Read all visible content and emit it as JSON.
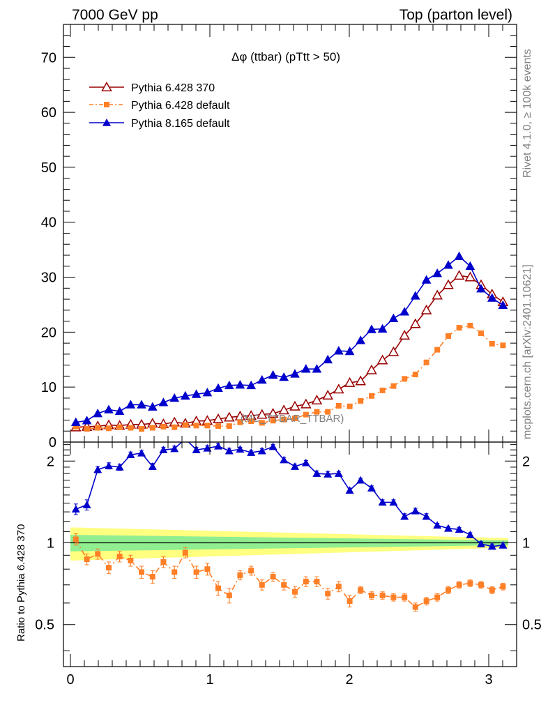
{
  "header": {
    "left": "7000 GeV pp",
    "right": "Top (parton level)"
  },
  "side": {
    "rivet": "Rivet 4.1.0, ≥ 100k events",
    "mcplots": "mcplots.cern.ch [arXiv:2401.10621]"
  },
  "watermark": "(MC_TTBAR_TTBAR)",
  "chart_data": [
    {
      "type": "line",
      "title": "Δφ (ttbar) (pTtt > 50)",
      "xlim": [
        -0.05,
        3.2
      ],
      "ylim": [
        0,
        76
      ],
      "yticks": [
        0,
        10,
        20,
        30,
        40,
        50,
        60,
        70
      ],
      "ytick_labels": [
        "0",
        "10",
        "20",
        "30",
        "40",
        "50",
        "60",
        "70"
      ],
      "legend": [
        "Pythia 6.428 370",
        "Pythia 6.428 default",
        "Pythia 8.165 default"
      ],
      "x": [
        0.039,
        0.118,
        0.196,
        0.275,
        0.353,
        0.432,
        0.51,
        0.589,
        0.667,
        0.746,
        0.824,
        0.903,
        0.982,
        1.06,
        1.139,
        1.217,
        1.296,
        1.374,
        1.453,
        1.531,
        1.61,
        1.689,
        1.767,
        1.846,
        1.924,
        2.003,
        2.081,
        2.16,
        2.238,
        2.317,
        2.396,
        2.474,
        2.553,
        2.631,
        2.71,
        2.788,
        2.867,
        2.945,
        3.024,
        3.102
      ],
      "series": [
        {
          "name": "Pythia 6.428 370",
          "color": "#990000",
          "marker": "open-triangle",
          "values": [
            2.7,
            2.8,
            2.9,
            3.1,
            3.0,
            3.2,
            3.2,
            3.4,
            3.3,
            3.6,
            3.4,
            3.8,
            3.9,
            4.2,
            4.5,
            4.7,
            4.8,
            5.0,
            5.2,
            5.8,
            6.5,
            6.9,
            7.6,
            8.5,
            9.6,
            10.8,
            11.1,
            13.1,
            14.9,
            16.4,
            19.4,
            21.5,
            24.0,
            26.7,
            28.6,
            30.3,
            30.0,
            28.6,
            26.9,
            25.5
          ],
          "errors": [
            0.25,
            0.25,
            0.25,
            0.25,
            0.25,
            0.25,
            0.25,
            0.25,
            0.25,
            0.25,
            0.25,
            0.25,
            0.25,
            0.25,
            0.25,
            0.25,
            0.25,
            0.25,
            0.25,
            0.25,
            0.25,
            0.25,
            0.25,
            0.25,
            0.25,
            0.25,
            0.25,
            0.25,
            0.3,
            0.3,
            0.3,
            0.3,
            0.3,
            0.3,
            0.3,
            0.3,
            0.3,
            0.3,
            0.3,
            0.3
          ]
        },
        {
          "name": "Pythia 6.428 default",
          "color": "#ff7f27",
          "marker": "filled-square",
          "values": [
            2.8,
            2.4,
            2.6,
            2.5,
            2.7,
            2.6,
            2.4,
            2.6,
            2.8,
            2.7,
            3.1,
            3.0,
            3.0,
            2.9,
            2.9,
            3.6,
            3.8,
            3.5,
            3.9,
            4.1,
            4.3,
            5.0,
            5.5,
            5.5,
            6.6,
            6.5,
            7.5,
            8.4,
            9.4,
            10.2,
            11.5,
            12.3,
            14.5,
            16.8,
            19.3,
            20.8,
            21.2,
            19.8,
            17.9,
            17.6
          ],
          "errors": [
            0.3,
            0.3,
            0.3,
            0.3,
            0.3,
            0.3,
            0.3,
            0.3,
            0.3,
            0.3,
            0.3,
            0.3,
            0.3,
            0.3,
            0.3,
            0.3,
            0.3,
            0.3,
            0.3,
            0.3,
            0.3,
            0.3,
            0.3,
            0.3,
            0.3,
            0.3,
            0.3,
            0.3,
            0.3,
            0.3,
            0.3,
            0.3,
            0.3,
            0.3,
            0.3,
            0.3,
            0.3,
            0.3,
            0.3,
            0.3
          ]
        },
        {
          "name": "Pythia 8.165 default",
          "color": "#0000cc",
          "marker": "filled-triangle",
          "values": [
            3.6,
            3.9,
            5.2,
            5.9,
            5.6,
            6.8,
            6.8,
            6.4,
            7.2,
            8.0,
            8.4,
            8.7,
            9.0,
            9.8,
            10.3,
            10.4,
            10.3,
            11.3,
            12.2,
            11.8,
            12.4,
            13.3,
            13.3,
            15.0,
            16.6,
            16.5,
            18.5,
            20.5,
            20.6,
            22.5,
            23.7,
            26.6,
            29.5,
            30.7,
            32.2,
            33.8,
            32.0,
            27.9,
            26.2,
            24.9
          ],
          "errors": [
            0.4,
            0.4,
            0.4,
            0.4,
            0.4,
            0.4,
            0.4,
            0.4,
            0.4,
            0.4,
            0.4,
            0.4,
            0.4,
            0.4,
            0.4,
            0.4,
            0.4,
            0.4,
            0.4,
            0.4,
            0.4,
            0.4,
            0.4,
            0.5,
            0.5,
            0.5,
            0.5,
            0.5,
            0.5,
            0.5,
            0.5,
            0.6,
            0.6,
            0.6,
            0.6,
            0.7,
            0.7,
            0.7,
            0.6,
            0.6
          ]
        }
      ]
    },
    {
      "type": "line",
      "title": "",
      "ylabel": "Ratio to Pythia 6.428 370",
      "xlim": [
        -0.05,
        3.2
      ],
      "ylim": [
        0.35,
        2.35
      ],
      "xticks": [
        0,
        1,
        2,
        3
      ],
      "xtick_labels": [
        "0",
        "1",
        "2",
        "3"
      ],
      "yticks": [
        0.5,
        1,
        2
      ],
      "ytick_labels": [
        "0.5",
        "1",
        "2"
      ],
      "band": {
        "inner_halfwidth": [
          0.07,
          0.02
        ],
        "outer_halfwidth": [
          0.14,
          0.04
        ],
        "inner_color": "#90ee90",
        "outer_color": "#ffff80"
      },
      "series": [
        {
          "name": "Pythia 6.428 default / Pythia 6.428 370",
          "color": "#ff7f27",
          "values": [
            1.03,
            0.87,
            0.91,
            0.81,
            0.89,
            0.86,
            0.78,
            0.75,
            0.85,
            0.78,
            0.92,
            0.78,
            0.8,
            0.68,
            0.64,
            0.76,
            0.79,
            0.7,
            0.75,
            0.7,
            0.66,
            0.72,
            0.72,
            0.65,
            0.69,
            0.61,
            0.67,
            0.64,
            0.64,
            0.63,
            0.63,
            0.58,
            0.61,
            0.63,
            0.67,
            0.7,
            0.71,
            0.7,
            0.67,
            0.69
          ],
          "errors": [
            0.05,
            0.04,
            0.04,
            0.04,
            0.04,
            0.04,
            0.04,
            0.04,
            0.04,
            0.04,
            0.04,
            0.04,
            0.04,
            0.04,
            0.04,
            0.03,
            0.03,
            0.03,
            0.03,
            0.03,
            0.03,
            0.03,
            0.03,
            0.03,
            0.03,
            0.03,
            0.02,
            0.02,
            0.02,
            0.02,
            0.02,
            0.02,
            0.02,
            0.02,
            0.02,
            0.02,
            0.02,
            0.02,
            0.02,
            0.02
          ]
        },
        {
          "name": "Pythia 8.165 default / Pythia 6.428 370",
          "color": "#0000cc",
          "values": [
            1.33,
            1.38,
            1.86,
            1.92,
            1.9,
            2.11,
            2.14,
            1.91,
            2.2,
            2.22,
            2.42,
            2.2,
            2.23,
            2.27,
            2.18,
            2.21,
            2.15,
            2.18,
            2.26,
            2.02,
            1.91,
            1.97,
            1.8,
            1.79,
            1.8,
            1.56,
            1.7,
            1.59,
            1.41,
            1.41,
            1.25,
            1.31,
            1.25,
            1.16,
            1.13,
            1.12,
            1.07,
            0.99,
            0.97,
            0.98
          ],
          "errors": [
            0.06,
            0.06,
            0.05,
            0.05,
            0.05,
            0.05,
            0.05,
            0.05,
            0.05,
            0.05,
            0.05,
            0.05,
            0.05,
            0.05,
            0.05,
            0.04,
            0.04,
            0.04,
            0.04,
            0.04,
            0.04,
            0.04,
            0.04,
            0.04,
            0.03,
            0.03,
            0.03,
            0.03,
            0.03,
            0.03,
            0.03,
            0.03,
            0.03,
            0.02,
            0.02,
            0.02,
            0.02,
            0.02,
            0.02,
            0.02
          ]
        }
      ]
    }
  ]
}
